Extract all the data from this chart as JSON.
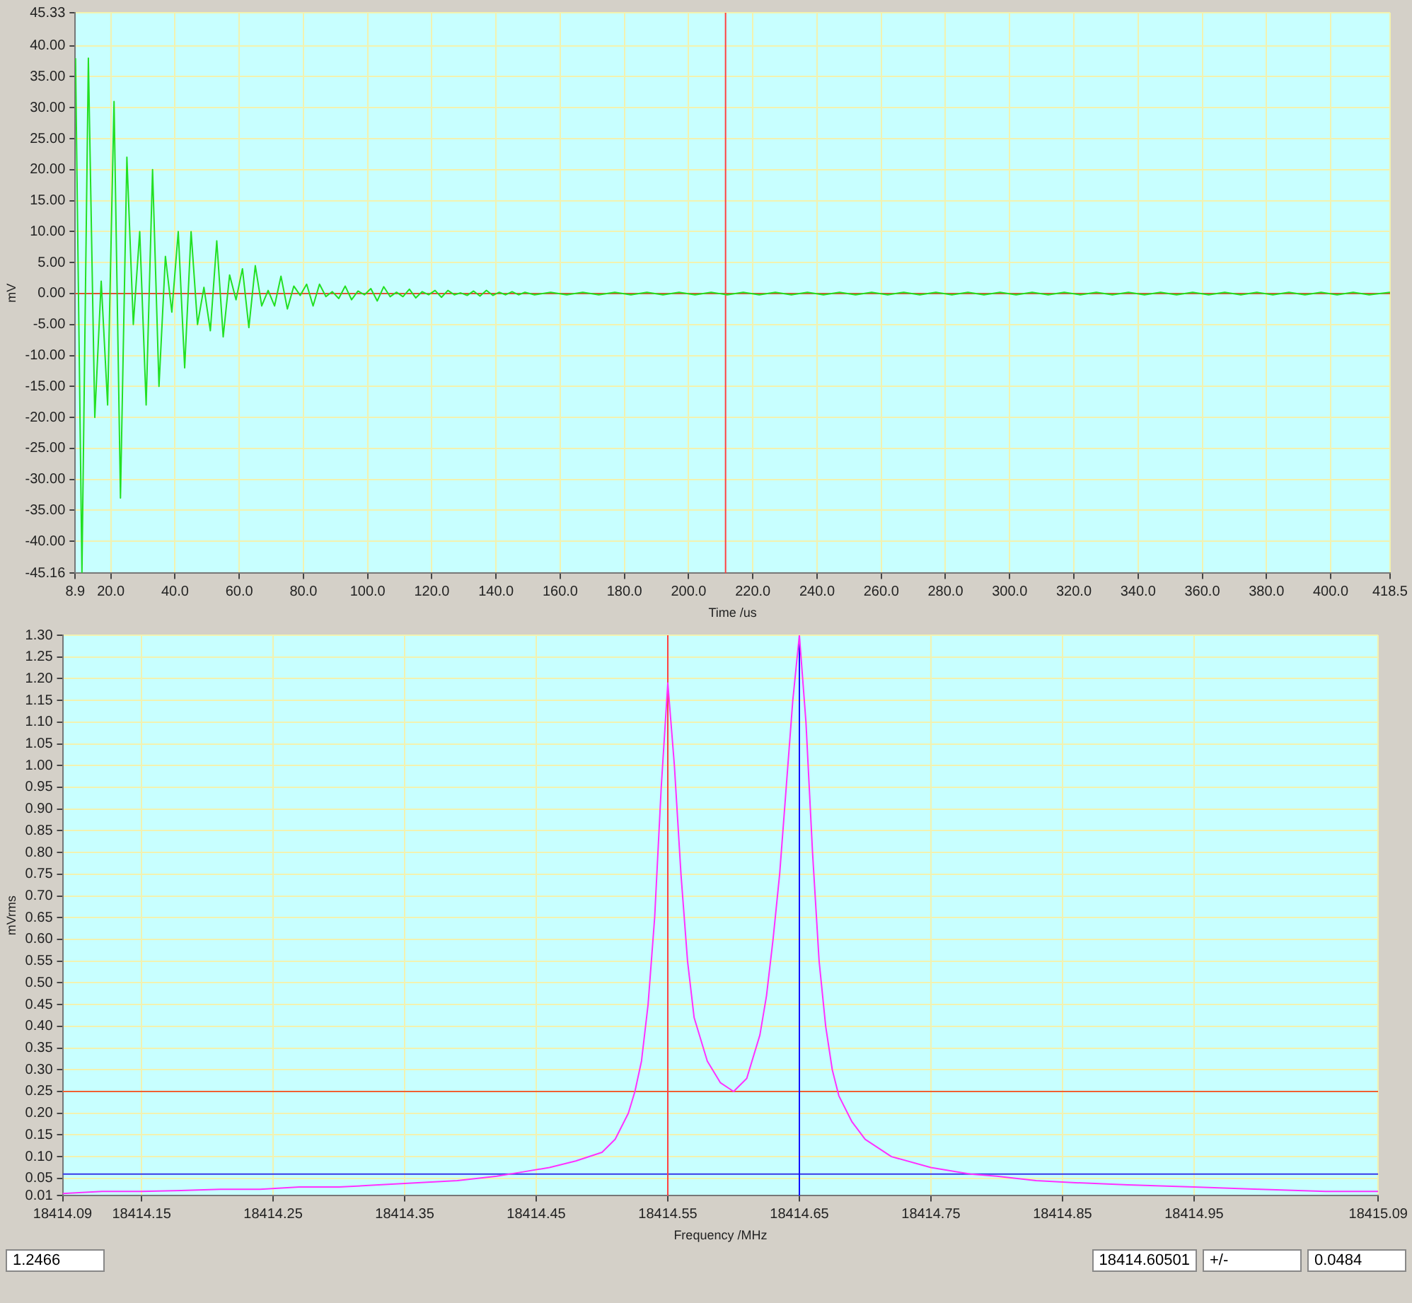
{
  "chart_data": [
    {
      "type": "line",
      "xlabel": "Time /us",
      "ylabel": "mV",
      "grid": true,
      "legend": false,
      "marker": "none",
      "line_style": "solid",
      "xlim": [
        8.9,
        418.5
      ],
      "xticks": [
        8.9,
        {
          "value": 20,
          "label": "20.0"
        },
        {
          "value": 40,
          "label": "40.0"
        },
        {
          "value": 60,
          "label": "60.0"
        },
        {
          "value": 80,
          "label": "80.0"
        },
        {
          "value": 100,
          "label": "100.0"
        },
        {
          "value": 120,
          "label": "120.0"
        },
        {
          "value": 140,
          "label": "140.0"
        },
        {
          "value": 160,
          "label": "160.0"
        },
        {
          "value": 180,
          "label": "180.0"
        },
        {
          "value": 200,
          "label": "200.0"
        },
        {
          "value": 220,
          "label": "220.0"
        },
        {
          "value": 240,
          "label": "240.0"
        },
        {
          "value": 260,
          "label": "260.0"
        },
        {
          "value": 280,
          "label": "280.0"
        },
        {
          "value": 300,
          "label": "300.0"
        },
        {
          "value": 320,
          "label": "320.0"
        },
        {
          "value": 340,
          "label": "340.0"
        },
        {
          "value": 360,
          "label": "360.0"
        },
        {
          "value": 380,
          "label": "380.0"
        },
        {
          "value": 400,
          "label": "400.0"
        },
        418.5
      ],
      "ylim": [
        -45.16,
        45.33
      ],
      "yticks": [
        {
          "value": -45.16,
          "label": "-45.16"
        },
        {
          "value": -40,
          "label": "-40.00"
        },
        {
          "value": -35,
          "label": "-35.00"
        },
        {
          "value": -30,
          "label": "-30.00"
        },
        {
          "value": -25,
          "label": "-25.00"
        },
        {
          "value": -20,
          "label": "-20.00"
        },
        {
          "value": -15,
          "label": "-15.00"
        },
        {
          "value": -10,
          "label": "-10.00"
        },
        {
          "value": -5,
          "label": "-5.00"
        },
        {
          "value": 0,
          "label": "0.00"
        },
        {
          "value": 5,
          "label": "5.00"
        },
        {
          "value": 10,
          "label": "10.00"
        },
        {
          "value": 15,
          "label": "15.00"
        },
        {
          "value": 20,
          "label": "20.00"
        },
        {
          "value": 25,
          "label": "25.00"
        },
        {
          "value": 30,
          "label": "30.00"
        },
        {
          "value": 35,
          "label": "35.00"
        },
        {
          "value": 40,
          "label": "40.00"
        },
        45.33
      ],
      "ref_lines": [
        {
          "axis": "x",
          "value": 211.5,
          "color": "#ff4040"
        },
        {
          "axis": "y",
          "value": 0,
          "color": "#e05030"
        }
      ],
      "series": [
        {
          "color": "#22e022",
          "x": [
            9,
            11,
            13,
            15,
            17,
            19,
            21,
            23,
            25,
            27,
            29,
            31,
            33,
            35,
            37,
            39,
            41,
            43,
            45,
            47,
            49,
            51,
            53,
            55,
            57,
            59,
            61,
            63,
            65,
            67,
            69,
            71,
            73,
            75,
            77,
            79,
            81,
            83,
            85,
            87,
            89,
            91,
            93,
            95,
            97,
            99,
            101,
            103,
            105,
            107,
            109,
            111,
            113,
            115,
            117,
            119,
            121,
            123,
            125,
            127,
            129,
            131,
            133,
            135,
            137,
            139,
            141,
            143,
            145,
            147,
            149,
            152,
            157,
            162,
            167,
            172,
            177,
            182,
            187,
            192,
            197,
            202,
            207,
            212,
            217,
            222,
            227,
            232,
            237,
            242,
            247,
            252,
            257,
            262,
            267,
            272,
            277,
            282,
            287,
            292,
            297,
            302,
            307,
            312,
            317,
            322,
            327,
            332,
            337,
            342,
            347,
            352,
            357,
            362,
            367,
            372,
            377,
            382,
            387,
            392,
            397,
            402,
            407,
            412,
            418.5
          ],
          "values": [
            38,
            -45,
            38,
            -20,
            2,
            -18,
            31,
            -33,
            22,
            -5,
            10,
            -18,
            20,
            -15,
            6,
            -3,
            10,
            -12,
            10,
            -5,
            1,
            -6,
            8.5,
            -7,
            3,
            -1,
            4,
            -5.5,
            4.5,
            -2,
            0.5,
            -2,
            2.8,
            -2.5,
            1.2,
            -0.3,
            1.5,
            -2,
            1.5,
            -0.5,
            0.3,
            -0.8,
            1.2,
            -1,
            0.4,
            -0.2,
            0.8,
            -1.2,
            1.1,
            -0.5,
            0.2,
            -0.5,
            0.7,
            -0.7,
            0.3,
            -0.2,
            0.5,
            -0.6,
            0.5,
            -0.2,
            0.1,
            -0.3,
            0.4,
            -0.4,
            0.5,
            -0.3,
            0.2,
            -0.2,
            0.3,
            -0.2,
            0.2,
            -0.2,
            0.2,
            -0.2,
            0.2,
            -0.2,
            0.2,
            -0.2,
            0.2,
            -0.2,
            0.2,
            -0.2,
            0.2,
            -0.2,
            0.2,
            -0.2,
            0.2,
            -0.2,
            0.2,
            -0.2,
            0.2,
            -0.2,
            0.2,
            -0.2,
            0.2,
            -0.2,
            0.2,
            -0.2,
            0.2,
            -0.2,
            0.2,
            -0.2,
            0.2,
            -0.2,
            0.2,
            -0.2,
            0.2,
            -0.2,
            0.2,
            -0.2,
            0.2,
            -0.2,
            0.2,
            -0.2,
            0.2,
            -0.2,
            0.2,
            -0.2,
            0.2,
            -0.2,
            0.2,
            -0.2,
            0.2,
            -0.2,
            0.2
          ]
        }
      ]
    },
    {
      "type": "line",
      "xlabel": "Frequency /MHz",
      "ylabel": "mVrms",
      "grid": true,
      "legend": false,
      "marker": "none",
      "line_style": "solid",
      "xlim": [
        18414.09,
        18415.09
      ],
      "xticks": [
        18414.09,
        18414.15,
        18414.25,
        18414.35,
        18414.45,
        18414.55,
        18414.65,
        18414.75,
        18414.85,
        18414.95,
        18415.09
      ],
      "ylim": [
        0.01,
        1.3
      ],
      "yticks": [
        0.01,
        0.05,
        {
          "value": 0.1,
          "label": "0.10"
        },
        0.15,
        {
          "value": 0.2,
          "label": "0.20"
        },
        0.25,
        {
          "value": 0.3,
          "label": "0.30"
        },
        0.35,
        {
          "value": 0.4,
          "label": "0.40"
        },
        0.45,
        {
          "value": 0.5,
          "label": "0.50"
        },
        0.55,
        {
          "value": 0.6,
          "label": "0.60"
        },
        0.65,
        {
          "value": 0.7,
          "label": "0.70"
        },
        0.75,
        {
          "value": 0.8,
          "label": "0.80"
        },
        0.85,
        {
          "value": 0.9,
          "label": "0.90"
        },
        0.95,
        {
          "value": 1,
          "label": "1.00"
        },
        1.05,
        {
          "value": 1.1,
          "label": "1.10"
        },
        1.15,
        {
          "value": 1.2,
          "label": "1.20"
        },
        1.25,
        {
          "value": 1.3,
          "label": "1.30"
        }
      ],
      "ref_lines": [
        {
          "axis": "x",
          "value": 18414.55,
          "color": "#ff4040"
        },
        {
          "axis": "x",
          "value": 18414.65,
          "color": "#1010ff"
        },
        {
          "axis": "y",
          "value": 0.25,
          "color": "#f06030"
        },
        {
          "axis": "y",
          "value": 0.06,
          "color": "#3838e8"
        }
      ],
      "annotations": [
        "1.2466",
        "18414.60501",
        "+/-",
        "0.0484"
      ],
      "series": [
        {
          "color": "#ff30ff",
          "x": [
            18414.09,
            18414.12,
            18414.15,
            18414.18,
            18414.21,
            18414.24,
            18414.27,
            18414.3,
            18414.33,
            18414.36,
            18414.39,
            18414.42,
            18414.44,
            18414.46,
            18414.48,
            18414.5,
            18414.51,
            18414.52,
            18414.525,
            18414.53,
            18414.535,
            18414.54,
            18414.545,
            18414.55,
            18414.555,
            18414.56,
            18414.565,
            18414.57,
            18414.58,
            18414.59,
            18414.6,
            18414.61,
            18414.62,
            18414.625,
            18414.63,
            18414.635,
            18414.64,
            18414.645,
            18414.65,
            18414.655,
            18414.66,
            18414.665,
            18414.67,
            18414.675,
            18414.68,
            18414.69,
            18414.7,
            18414.72,
            18414.75,
            18414.78,
            18414.8,
            18414.83,
            18414.86,
            18414.9,
            18414.95,
            18415,
            18415.05,
            18415.09
          ],
          "values": [
            0.015,
            0.02,
            0.02,
            0.022,
            0.025,
            0.025,
            0.03,
            0.03,
            0.035,
            0.04,
            0.045,
            0.055,
            0.065,
            0.075,
            0.09,
            0.11,
            0.14,
            0.2,
            0.25,
            0.32,
            0.45,
            0.65,
            0.95,
            1.19,
            1,
            0.75,
            0.55,
            0.42,
            0.32,
            0.27,
            0.25,
            0.28,
            0.38,
            0.47,
            0.6,
            0.75,
            0.95,
            1.15,
            1.3,
            1.1,
            0.8,
            0.55,
            0.4,
            0.3,
            0.24,
            0.18,
            0.14,
            0.1,
            0.075,
            0.06,
            0.055,
            0.045,
            0.04,
            0.035,
            0.03,
            0.025,
            0.02,
            0.02
          ]
        }
      ]
    }
  ]
}
